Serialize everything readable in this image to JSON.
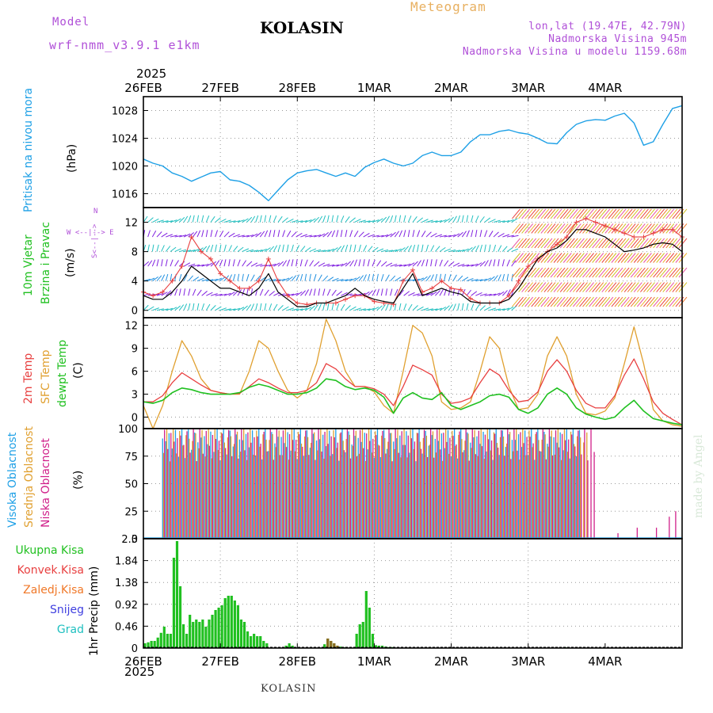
{
  "header": {
    "model_label": "Model",
    "model_name": "wrf-nmm_v3.9.1 e1km",
    "station": "KOLASIN",
    "meteogram_label": "Meteogram",
    "lonlat": "lon,lat (19.47E, 42.79N)",
    "elevation": "Nadmorska Visina 945m",
    "model_elevation": "Nadmorska Visina u modelu 1159.68m",
    "year_top": "2025",
    "year_bottom": "2025",
    "footer": "KOLASIN",
    "watermark": "made by Angel"
  },
  "colors": {
    "pressure": "#1ea0e6",
    "t2m": "#e84040",
    "sfc": "#e0a030",
    "dewpt": "#20c020",
    "high_cloud": "#1ea0e6",
    "mid_cloud": "#e0a030",
    "low_cloud": "#d0208a",
    "precip": "#20c020",
    "convective": "#e84040",
    "frozen": "#f07828",
    "snow": "#4040e0",
    "hail": "#20c0c0"
  },
  "x_axis": {
    "ticks": [
      "26FEB",
      "27FEB",
      "28FEB",
      "1MAR",
      "2MAR",
      "3MAR",
      "4MAR"
    ]
  },
  "panel_labels": {
    "pressure": {
      "name": "Pritisak na nivou mora",
      "unit": "(hPa)"
    },
    "wind": {
      "name1": "10m Vjetar",
      "name2": "Brzina i Pravac",
      "unit": "(m/s)",
      "compass_top": "N",
      "compass_row": "W <--|--> E",
      "compass_bottom": "S<--|-->",
      "compass_mid": "|"
    },
    "temp": {
      "t2m": "2m Temp",
      "sfc": "SFC Temp",
      "dewpt": "dewpt Temp",
      "unit": "(C)"
    },
    "cloud": {
      "high": "Visoka Oblacnost",
      "mid": "Srednja Oblacnost",
      "low": "Niska Oblacnost",
      "unit": "(%)"
    },
    "precip": {
      "total": "Ukupna Kisa",
      "convective": "Konvek.Kisa",
      "frozen": "Zaledj.Kisa",
      "snow": "Snijeg",
      "hail": "Grad",
      "unit": "1hr Precip (mm)"
    }
  },
  "chart_data": [
    {
      "type": "line",
      "ylabel": "(hPa)",
      "y_ticks": [
        "1016",
        "1020",
        "1024",
        "1028"
      ],
      "ylim": [
        1014,
        1030
      ],
      "x_unit": "hours from 26FEB 00UTC",
      "series": [
        {
          "name": "Pritisak na nivou mora",
          "x": [
            0,
            3,
            6,
            9,
            12,
            15,
            18,
            21,
            24,
            27,
            30,
            33,
            36,
            39,
            42,
            45,
            48,
            51,
            54,
            57,
            60,
            63,
            66,
            69,
            72,
            75,
            78,
            81,
            84,
            87,
            90,
            93,
            96,
            99,
            102,
            105,
            108,
            111,
            114,
            117,
            120,
            123,
            126,
            129,
            132,
            135,
            138,
            141,
            144,
            147,
            150,
            153,
            156,
            159,
            162,
            165,
            168
          ],
          "values": [
            1021,
            1020.4,
            1020,
            1019,
            1018.5,
            1017.8,
            1018.4,
            1019,
            1019.2,
            1018,
            1017.8,
            1017.2,
            1016.2,
            1015,
            1016.5,
            1018,
            1019,
            1019.3,
            1019.5,
            1019,
            1018.5,
            1019,
            1018.5,
            1019.8,
            1020.5,
            1021,
            1020.4,
            1020,
            1020.4,
            1021.5,
            1022,
            1021.5,
            1021.5,
            1022,
            1023.5,
            1024.5,
            1024.5,
            1025,
            1025.2,
            1024.8,
            1024.6,
            1024,
            1023.3,
            1023.2,
            1024.8,
            1026,
            1026.5,
            1026.7,
            1026.6,
            1027.2,
            1027.6,
            1026.2,
            1023,
            1023.5,
            1026,
            1028.3,
            1028.7
          ]
        }
      ]
    },
    {
      "type": "line",
      "ylabel": "(m/s)",
      "y_ticks": [
        "0",
        "4",
        "8",
        "12"
      ],
      "ylim": [
        -1,
        14
      ],
      "series": [
        {
          "name": "10m Vjetar brzina",
          "x": [
            0,
            3,
            6,
            9,
            12,
            15,
            18,
            21,
            24,
            27,
            30,
            33,
            36,
            39,
            42,
            45,
            48,
            51,
            54,
            57,
            60,
            63,
            66,
            69,
            72,
            75,
            78,
            81,
            84,
            87,
            90,
            93,
            96,
            99,
            102,
            105,
            108,
            111,
            114,
            117,
            120,
            123,
            126,
            129,
            132,
            135,
            138,
            141,
            144,
            147,
            150,
            153,
            156,
            159,
            162,
            165,
            168
          ],
          "values": [
            2,
            1.5,
            1.5,
            2.5,
            4,
            6,
            5,
            4,
            3,
            3,
            2.5,
            2,
            3,
            5,
            2.5,
            1.5,
            0.5,
            0.5,
            1,
            1,
            1.5,
            2,
            3,
            2,
            1.5,
            1.2,
            1,
            3,
            5,
            2,
            2.5,
            3,
            2.5,
            2.2,
            1.2,
            1,
            1,
            1,
            1.5,
            3,
            5,
            7,
            8,
            8.5,
            9.5,
            11,
            11,
            10.5,
            10,
            9,
            8,
            8.2,
            8.5,
            9,
            9.2,
            9,
            8
          ]
        },
        {
          "name": "10m Vjetar udari",
          "x": [
            0,
            3,
            6,
            9,
            12,
            15,
            18,
            21,
            24,
            27,
            30,
            33,
            36,
            39,
            42,
            45,
            48,
            51,
            54,
            57,
            60,
            63,
            66,
            69,
            72,
            75,
            78,
            81,
            84,
            87,
            90,
            93,
            96,
            99,
            102,
            105,
            108,
            111,
            114,
            117,
            120,
            123,
            126,
            129,
            132,
            135,
            138,
            141,
            144,
            147,
            150,
            153,
            156,
            159,
            162,
            165,
            168
          ],
          "values": [
            2.5,
            2,
            2.5,
            4,
            6,
            10,
            8,
            7,
            5,
            4,
            3,
            3,
            4,
            7,
            4,
            2,
            1,
            0.8,
            1,
            1,
            1,
            1.5,
            2,
            2,
            1.2,
            1,
            0.8,
            4,
            5.5,
            2.5,
            3,
            4,
            3,
            2.8,
            1.6,
            1,
            1,
            1,
            2,
            4,
            6,
            7,
            8,
            9,
            10,
            12,
            12.5,
            12,
            11.5,
            11,
            10.5,
            10,
            10,
            10.5,
            11,
            11,
            10
          ]
        }
      ]
    },
    {
      "type": "line",
      "ylabel": "(C)",
      "y_ticks": [
        "0",
        "3",
        "6",
        "9",
        "12"
      ],
      "ylim": [
        -1.5,
        13
      ],
      "series": [
        {
          "name": "2m Temp",
          "x": [
            0,
            3,
            6,
            9,
            12,
            15,
            18,
            21,
            24,
            27,
            30,
            33,
            36,
            39,
            42,
            45,
            48,
            51,
            54,
            57,
            60,
            63,
            66,
            69,
            72,
            75,
            78,
            81,
            84,
            87,
            90,
            93,
            96,
            99,
            102,
            105,
            108,
            111,
            114,
            117,
            120,
            123,
            126,
            129,
            132,
            135,
            138,
            141,
            144,
            147,
            150,
            153,
            156,
            159,
            162,
            165,
            168
          ],
          "values": [
            2,
            2,
            2.8,
            4.5,
            5.8,
            5,
            4.2,
            3.5,
            3.2,
            3,
            3.1,
            4,
            5,
            4.5,
            3.8,
            3.2,
            3.2,
            3.5,
            4.5,
            7,
            6.3,
            5,
            4,
            4,
            3.7,
            3,
            1.5,
            4,
            6.8,
            6.2,
            5.5,
            3,
            1.8,
            2,
            2.5,
            4.5,
            6.3,
            5.5,
            3.5,
            2,
            2.2,
            3.3,
            6,
            7.5,
            6,
            3.5,
            1.8,
            1.2,
            1.2,
            2.8,
            5.5,
            7.6,
            5,
            2,
            0.5,
            -0.3,
            -1
          ]
        },
        {
          "name": "SFC Temp",
          "x": [
            0,
            3,
            6,
            9,
            12,
            15,
            18,
            21,
            24,
            27,
            30,
            33,
            36,
            39,
            42,
            45,
            48,
            51,
            54,
            57,
            60,
            63,
            66,
            69,
            72,
            75,
            78,
            81,
            84,
            87,
            90,
            93,
            96,
            99,
            102,
            105,
            108,
            111,
            114,
            117,
            120,
            123,
            126,
            129,
            132,
            135,
            138,
            141,
            144,
            147,
            150,
            153,
            156,
            159,
            162,
            165,
            168
          ],
          "values": [
            1.5,
            -1.5,
            1.5,
            6,
            10,
            8,
            5,
            3.5,
            3.2,
            3,
            3,
            6,
            10,
            9,
            6,
            3.5,
            2.5,
            3.5,
            7,
            12.8,
            10,
            6,
            4,
            4,
            3.3,
            1.5,
            0.5,
            6,
            12,
            11,
            8,
            2,
            1,
            1.2,
            2,
            6,
            10.5,
            9,
            4,
            1,
            1.2,
            3,
            8,
            10.5,
            8,
            3,
            0.5,
            0.3,
            0.8,
            2.5,
            7,
            11.8,
            7,
            1,
            -0.5,
            -1,
            -1.2
          ]
        },
        {
          "name": "dewpt Temp",
          "x": [
            0,
            3,
            6,
            9,
            12,
            15,
            18,
            21,
            24,
            27,
            30,
            33,
            36,
            39,
            42,
            45,
            48,
            51,
            54,
            57,
            60,
            63,
            66,
            69,
            72,
            75,
            78,
            81,
            84,
            87,
            90,
            93,
            96,
            99,
            102,
            105,
            108,
            111,
            114,
            117,
            120,
            123,
            126,
            129,
            132,
            135,
            138,
            141,
            144,
            147,
            150,
            153,
            156,
            159,
            162,
            165,
            168
          ],
          "values": [
            2,
            1.8,
            2.2,
            3.2,
            3.8,
            3.6,
            3.2,
            3,
            3,
            3,
            3.2,
            3.9,
            4.3,
            4,
            3.5,
            3,
            3,
            3.2,
            3.8,
            5,
            4.8,
            4,
            3.6,
            3.8,
            3.5,
            2.6,
            0.5,
            2.5,
            3.2,
            2.5,
            2.3,
            3.2,
            1.5,
            1,
            1.5,
            2,
            2.8,
            3,
            2.6,
            1,
            0.5,
            1.2,
            3,
            3.8,
            3,
            1.2,
            0.4,
            0,
            -0.3,
            0,
            1.2,
            2.2,
            0.8,
            -0.2,
            -0.5,
            -0.8,
            -1
          ]
        }
      ]
    },
    {
      "type": "bar",
      "ylabel": "(%)",
      "y_ticks": [
        "0",
        "25",
        "50",
        "75",
        "100"
      ],
      "ylim": [
        0,
        100
      ],
      "summary": "Near-100% cloud cover with frequent fluctuations from 26FEB 06UTC to ~3MAR 06UTC; clear thereafter with isolated low-cloud bars near 4MAR",
      "series": [
        {
          "name": "Visoka Oblacnost",
          "cover_from_h": 6,
          "cover_to_h": 136
        },
        {
          "name": "Srednja Oblacnost",
          "cover_from_h": 6,
          "cover_to_h": 138
        },
        {
          "name": "Niska Oblacnost",
          "cover_from_h": 6,
          "cover_to_h": 140,
          "late_bars_h": [
            148,
            154,
            160,
            164,
            166
          ],
          "late_bars_values": [
            5,
            10,
            10,
            20,
            25
          ]
        }
      ]
    },
    {
      "type": "bar",
      "ylabel": "1hr Precip (mm)",
      "y_ticks": [
        "0",
        "0.46",
        "0.92",
        "1.38",
        "1.84",
        "2.3"
      ],
      "ylim": [
        0,
        2.3
      ],
      "series": [
        {
          "name": "Ukupna Kisa",
          "x": [
            0,
            1,
            2,
            3,
            4,
            5,
            6,
            7,
            8,
            9,
            10,
            11,
            12,
            13,
            14,
            15,
            16,
            17,
            18,
            19,
            20,
            21,
            22,
            23,
            24,
            25,
            26,
            27,
            28,
            29,
            30,
            31,
            32,
            33,
            34,
            35,
            36,
            37,
            38,
            44,
            45,
            46,
            56,
            57,
            58,
            59,
            60,
            61,
            62,
            64,
            66,
            67,
            68,
            69,
            70,
            71,
            72,
            73,
            74,
            75,
            76,
            77,
            131
          ],
          "values": [
            0.1,
            0.12,
            0.15,
            0.15,
            0.22,
            0.32,
            0.45,
            0.3,
            0.3,
            1.9,
            2.25,
            1.3,
            0.5,
            0.3,
            0.7,
            0.55,
            0.6,
            0.55,
            0.6,
            0.45,
            0.6,
            0.7,
            0.8,
            0.85,
            0.9,
            1.05,
            1.1,
            1.1,
            1.0,
            0.9,
            0.6,
            0.55,
            0.35,
            0.25,
            0.3,
            0.25,
            0.25,
            0.15,
            0.1,
            0.05,
            0.1,
            0.05,
            0.08,
            0.2,
            0.15,
            0.1,
            0.05,
            0.03,
            0.02,
            0.01,
            0.3,
            0.5,
            0.55,
            1.2,
            0.85,
            0.3,
            0.06,
            0.05,
            0.05,
            0.03,
            0.02,
            0.02,
            0.02
          ]
        },
        {
          "name": "Zaledj.Kisa",
          "x": [
            57,
            58,
            59,
            60
          ],
          "values": [
            0.2,
            0.15,
            0.1,
            0.05
          ]
        }
      ]
    }
  ]
}
